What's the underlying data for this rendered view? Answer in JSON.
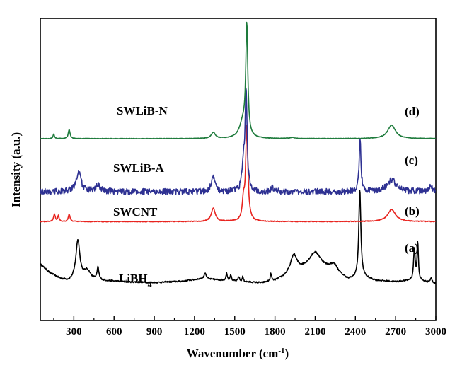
{
  "chart_data": {
    "type": "line",
    "xlabel": "Wavenumber (cm",
    "xlabel_sup": "-1",
    "xlabel_close": ")",
    "ylabel": "Intensity (a.u.)",
    "xlim": [
      50,
      3000
    ],
    "x_ticks": [
      300,
      600,
      900,
      1200,
      1500,
      1800,
      2100,
      2400,
      2700,
      3000
    ],
    "x_tick_labels": [
      "300",
      "600",
      "900",
      "1200",
      "1500",
      "1800",
      "2100",
      "2400",
      "2700",
      "3000"
    ],
    "y_ticks_shown": false,
    "grid": false,
    "series": [
      {
        "name": "LiBH",
        "name_sub": "4",
        "letter": "(a)",
        "color": "#000000",
        "baseline": 0.6,
        "noise": 0.012,
        "background": [
          [
            50,
            0.32
          ],
          [
            120,
            0.18
          ],
          [
            200,
            0.08
          ],
          [
            260,
            0.04
          ],
          [
            350,
            0.06
          ],
          [
            500,
            0.05
          ],
          [
            700,
            0.03
          ],
          [
            900,
            0.02
          ],
          [
            1100,
            0.04
          ],
          [
            1250,
            0.08
          ],
          [
            1400,
            0.06
          ],
          [
            1550,
            0.03
          ],
          [
            1700,
            0.01
          ],
          [
            1800,
            0.04
          ],
          [
            1900,
            0.12
          ],
          [
            2000,
            0.2
          ],
          [
            2100,
            0.25
          ],
          [
            2200,
            0.18
          ],
          [
            2350,
            0.05
          ],
          [
            2450,
            0.1
          ],
          [
            2550,
            0.05
          ],
          [
            2700,
            0.03
          ],
          [
            2800,
            0.05
          ],
          [
            2900,
            0.04
          ],
          [
            3000,
            0.0
          ]
        ],
        "peaks": [
          {
            "x": 330,
            "h": 0.65,
            "w": 18
          },
          {
            "x": 400,
            "h": 0.15,
            "w": 30
          },
          {
            "x": 480,
            "h": 0.2,
            "w": 8
          },
          {
            "x": 1280,
            "h": 0.1,
            "w": 10
          },
          {
            "x": 1440,
            "h": 0.12,
            "w": 6
          },
          {
            "x": 1470,
            "h": 0.1,
            "w": 6
          },
          {
            "x": 1530,
            "h": 0.08,
            "w": 6
          },
          {
            "x": 1560,
            "h": 0.08,
            "w": 6
          },
          {
            "x": 1770,
            "h": 0.12,
            "w": 6
          },
          {
            "x": 1940,
            "h": 0.3,
            "w": 30
          },
          {
            "x": 2100,
            "h": 0.25,
            "w": 60
          },
          {
            "x": 2240,
            "h": 0.15,
            "w": 40
          },
          {
            "x": 2433,
            "h": 1.45,
            "w": 9
          },
          {
            "x": 2840,
            "h": 0.52,
            "w": 7
          },
          {
            "x": 2865,
            "h": 0.62,
            "w": 6
          },
          {
            "x": 2965,
            "h": 0.08,
            "w": 8
          }
        ]
      },
      {
        "name": "SWCNT",
        "letter": "(b)",
        "color": "#e8241f",
        "baseline": 1.62,
        "noise": 0.006,
        "background": [
          [
            50,
            0.0
          ],
          [
            3000,
            0.0
          ]
        ],
        "peaks": [
          {
            "x": 155,
            "h": 0.12,
            "w": 8
          },
          {
            "x": 185,
            "h": 0.1,
            "w": 6
          },
          {
            "x": 265,
            "h": 0.12,
            "w": 8
          },
          {
            "x": 1340,
            "h": 0.22,
            "w": 18
          },
          {
            "x": 1565,
            "h": 0.3,
            "w": 10
          },
          {
            "x": 1590,
            "h": 1.55,
            "w": 10
          },
          {
            "x": 2670,
            "h": 0.2,
            "w": 35
          }
        ]
      },
      {
        "name": "SWLiB-A",
        "letter": "(c)",
        "color": "#2e3192",
        "baseline": 2.11,
        "noise": 0.05,
        "background": [
          [
            50,
            0.0
          ],
          [
            3000,
            0.0
          ]
        ],
        "peaks": [
          {
            "x": 335,
            "h": 0.32,
            "w": 22
          },
          {
            "x": 480,
            "h": 0.1,
            "w": 22
          },
          {
            "x": 1340,
            "h": 0.22,
            "w": 18
          },
          {
            "x": 1565,
            "h": 0.4,
            "w": 12
          },
          {
            "x": 1585,
            "h": 1.6,
            "w": 9
          },
          {
            "x": 1780,
            "h": 0.08,
            "w": 8
          },
          {
            "x": 2435,
            "h": 0.85,
            "w": 8
          },
          {
            "x": 2670,
            "h": 0.2,
            "w": 40
          },
          {
            "x": 2960,
            "h": 0.1,
            "w": 12
          }
        ]
      },
      {
        "name": "SWLiB-N",
        "letter": "(d)",
        "color": "#1e7b3c",
        "baseline": 2.98,
        "noise": 0.004,
        "background": [
          [
            50,
            0.0
          ],
          [
            3000,
            0.0
          ]
        ],
        "peaks": [
          {
            "x": 150,
            "h": 0.08,
            "w": 6
          },
          {
            "x": 265,
            "h": 0.15,
            "w": 8
          },
          {
            "x": 1340,
            "h": 0.1,
            "w": 18
          },
          {
            "x": 1560,
            "h": 0.25,
            "w": 30
          },
          {
            "x": 1590,
            "h": 1.8,
            "w": 9
          },
          {
            "x": 1930,
            "h": 0.02,
            "w": 20
          },
          {
            "x": 2670,
            "h": 0.22,
            "w": 35
          }
        ]
      }
    ]
  }
}
